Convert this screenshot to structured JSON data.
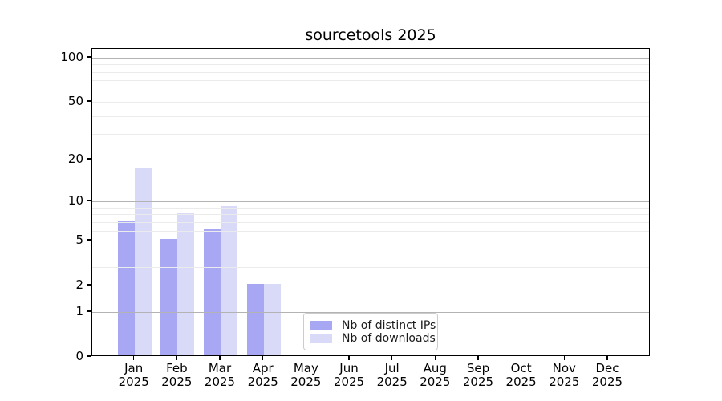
{
  "title": "sourcetools 2025",
  "chart_data": {
    "type": "bar",
    "title": "sourcetools 2025",
    "categories": [
      "Jan",
      "Feb",
      "Mar",
      "Apr",
      "May",
      "Jun",
      "Jul",
      "Aug",
      "Sep",
      "Oct",
      "Nov",
      "Dec"
    ],
    "year": "2025",
    "series": [
      {
        "name": "Nb of distinct IPs",
        "color": "#a7a7f4",
        "values": [
          7,
          5,
          6,
          2,
          0,
          0,
          0,
          0,
          0,
          0,
          0,
          0
        ]
      },
      {
        "name": "Nb of downloads",
        "color": "#d9d9f8",
        "values": [
          17,
          8,
          9,
          2,
          0,
          0,
          0,
          0,
          0,
          0,
          0,
          0
        ]
      }
    ],
    "y_ticks": [
      0,
      1,
      2,
      5,
      10,
      20,
      50,
      100
    ],
    "yscale": "log1p",
    "ylim": [
      0,
      114.6
    ],
    "grid": true,
    "legend_position": "lower center",
    "colors": {
      "grid_minor": "#ebebeb",
      "grid_major": "#b3b3b3",
      "spine": "#000000",
      "background": "#ffffff"
    }
  }
}
